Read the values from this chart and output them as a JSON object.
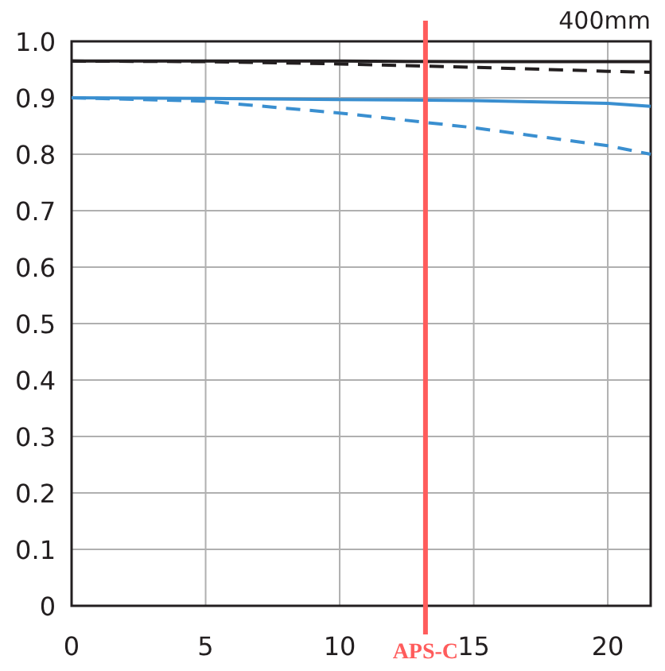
{
  "chart_data": {
    "type": "line",
    "title": "400mm",
    "x": [
      0,
      5,
      10,
      15,
      20,
      21.6
    ],
    "series": [
      {
        "color": "#231f20",
        "line_style": "solid",
        "values": [
          0.965,
          0.965,
          0.965,
          0.964,
          0.964,
          0.964
        ]
      },
      {
        "color": "#231f20",
        "line_style": "dashed",
        "values": [
          0.965,
          0.964,
          0.96,
          0.954,
          0.947,
          0.945
        ]
      },
      {
        "color": "#3a8fd0",
        "line_style": "solid",
        "values": [
          0.9,
          0.899,
          0.897,
          0.895,
          0.89,
          0.885
        ]
      },
      {
        "color": "#3a8fd0",
        "line_style": "dashed",
        "values": [
          0.9,
          0.894,
          0.873,
          0.847,
          0.815,
          0.8
        ]
      }
    ],
    "xlim": [
      0,
      21.6
    ],
    "xticks": [
      0,
      5,
      10,
      15,
      20
    ],
    "ylim": [
      0,
      1
    ],
    "yticks": [
      0,
      0.1,
      0.2,
      0.3,
      0.4,
      0.5,
      0.6,
      0.7,
      0.8,
      0.9,
      {
        "value": 1,
        "label": "1.0"
      }
    ],
    "grid": true,
    "marker": "none",
    "ref_lines": [
      {
        "axis": "x",
        "value": 13.2,
        "label": "APS-C",
        "color": "#ff5c5c"
      }
    ]
  }
}
